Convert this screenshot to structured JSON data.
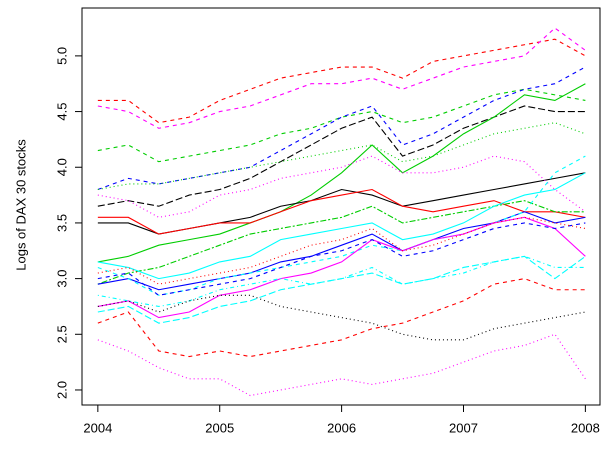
{
  "chart_data": {
    "type": "line",
    "y_label": "Logs of DAX 30 stocks",
    "x": [
      2004,
      2004.25,
      2004.5,
      2004.75,
      2005,
      2005.25,
      2005.5,
      2005.75,
      2006,
      2006.25,
      2006.5,
      2006.75,
      2007,
      2007.25,
      2007.5,
      2007.75,
      2008
    ],
    "xlim": [
      2003.87,
      2008.12
    ],
    "xticks": [
      2004,
      2005,
      2006,
      2007,
      2008
    ],
    "ylim": [
      1.865,
      5.43
    ],
    "yticks": [
      {
        "value": 2,
        "label": "2.0"
      },
      2.5,
      {
        "value": 3,
        "label": "3.0"
      },
      3.5,
      {
        "value": 4,
        "label": "4.0"
      },
      4.5,
      {
        "value": 5,
        "label": "5.0"
      }
    ],
    "series": [
      {
        "color": "#ff0000",
        "linestyle": "dashed",
        "values": [
          4.6,
          4.6,
          4.4,
          4.45,
          4.6,
          4.7,
          4.8,
          4.85,
          4.9,
          4.9,
          4.8,
          4.95,
          5.0,
          5.05,
          5.1,
          5.15,
          5.0
        ]
      },
      {
        "color": "#ff00ff",
        "linestyle": "dashed",
        "values": [
          4.55,
          4.5,
          4.35,
          4.4,
          4.5,
          4.55,
          4.65,
          4.75,
          4.75,
          4.8,
          4.7,
          4.8,
          4.9,
          4.95,
          5.0,
          5.25,
          5.05
        ]
      },
      {
        "color": "#00cd00",
        "linestyle": "dashed",
        "values": [
          4.15,
          4.2,
          4.05,
          4.1,
          4.15,
          4.2,
          4.3,
          4.35,
          4.45,
          4.5,
          4.4,
          4.45,
          4.55,
          4.65,
          4.7,
          4.65,
          4.6
        ]
      },
      {
        "color": "#0000ff",
        "linestyle": "dashed",
        "values": [
          3.8,
          3.9,
          3.85,
          3.9,
          3.95,
          4.0,
          4.15,
          4.3,
          4.45,
          4.55,
          4.2,
          4.3,
          4.45,
          4.6,
          4.7,
          4.75,
          4.9
        ]
      },
      {
        "color": "#000000",
        "linestyle": "longdash",
        "values": [
          3.65,
          3.7,
          3.65,
          3.75,
          3.8,
          3.9,
          4.05,
          4.2,
          4.35,
          4.45,
          4.1,
          4.2,
          4.35,
          4.45,
          4.55,
          4.5,
          4.5
        ]
      },
      {
        "color": "#00cd00",
        "linestyle": "solid",
        "values": [
          3.15,
          3.2,
          3.3,
          3.35,
          3.4,
          3.5,
          3.6,
          3.75,
          3.95,
          4.2,
          3.95,
          4.1,
          4.3,
          4.45,
          4.65,
          4.6,
          4.75
        ]
      },
      {
        "color": "#000000",
        "linestyle": "solid",
        "values": [
          3.5,
          3.5,
          3.4,
          3.45,
          3.5,
          3.55,
          3.65,
          3.7,
          3.8,
          3.75,
          3.65,
          3.7,
          3.75,
          3.8,
          3.85,
          3.9,
          3.95
        ]
      },
      {
        "color": "#ff0000",
        "linestyle": "solid",
        "values": [
          3.55,
          3.55,
          3.4,
          3.45,
          3.5,
          3.5,
          3.6,
          3.7,
          3.75,
          3.8,
          3.65,
          3.6,
          3.65,
          3.7,
          3.6,
          3.6,
          3.55
        ]
      },
      {
        "color": "#ff00ff",
        "linestyle": "dotted",
        "values": [
          3.75,
          3.7,
          3.55,
          3.6,
          3.75,
          3.8,
          3.9,
          3.95,
          4.0,
          4.1,
          3.95,
          3.95,
          4.0,
          4.1,
          4.05,
          3.8,
          3.6
        ]
      },
      {
        "color": "#00cd00",
        "linestyle": "twodash",
        "values": [
          2.95,
          3.05,
          3.1,
          3.2,
          3.3,
          3.4,
          3.45,
          3.5,
          3.55,
          3.65,
          3.5,
          3.55,
          3.6,
          3.65,
          3.7,
          3.6,
          3.6
        ]
      },
      {
        "color": "#0000ff",
        "linestyle": "solid",
        "values": [
          2.95,
          3.0,
          2.9,
          2.95,
          3.0,
          3.05,
          3.15,
          3.2,
          3.3,
          3.4,
          3.25,
          3.35,
          3.45,
          3.5,
          3.6,
          3.5,
          3.55
        ]
      },
      {
        "color": "#00ffff",
        "linestyle": "solid",
        "values": [
          3.15,
          3.1,
          3.0,
          3.05,
          3.15,
          3.2,
          3.35,
          3.4,
          3.45,
          3.5,
          3.35,
          3.4,
          3.5,
          3.65,
          3.75,
          3.8,
          3.95
        ]
      },
      {
        "color": "#00ffff",
        "linestyle": "dashed",
        "values": [
          3.1,
          3.0,
          2.85,
          2.9,
          3.0,
          3.05,
          3.1,
          3.15,
          3.2,
          3.3,
          3.25,
          3.35,
          3.4,
          3.5,
          3.6,
          3.95,
          4.1
        ]
      },
      {
        "color": "#ff00ff",
        "linestyle": "solid",
        "values": [
          2.75,
          2.8,
          2.65,
          2.7,
          2.85,
          2.9,
          3.0,
          3.05,
          3.15,
          3.35,
          3.25,
          3.35,
          3.4,
          3.5,
          3.55,
          3.45,
          3.2
        ]
      },
      {
        "color": "#00ffff",
        "linestyle": "dotdash",
        "values": [
          2.85,
          2.8,
          2.75,
          2.8,
          2.9,
          2.95,
          3.0,
          2.95,
          3.0,
          3.1,
          2.95,
          3.0,
          3.05,
          3.15,
          3.2,
          3.1,
          3.1
        ]
      },
      {
        "color": "#ff0000",
        "linestyle": "dashed",
        "values": [
          2.6,
          2.7,
          2.35,
          2.3,
          2.35,
          2.3,
          2.35,
          2.4,
          2.45,
          2.55,
          2.6,
          2.7,
          2.8,
          2.95,
          3.0,
          2.9,
          2.9
        ]
      },
      {
        "color": "#000000",
        "linestyle": "dotted",
        "values": [
          2.75,
          2.8,
          2.7,
          2.8,
          2.85,
          2.85,
          2.75,
          2.7,
          2.65,
          2.6,
          2.5,
          2.45,
          2.45,
          2.55,
          2.6,
          2.65,
          2.7
        ]
      },
      {
        "color": "#ff00ff",
        "linestyle": "dotted",
        "values": [
          2.45,
          2.35,
          2.2,
          2.1,
          2.1,
          1.95,
          2.0,
          2.05,
          2.1,
          2.05,
          2.1,
          2.15,
          2.25,
          2.35,
          2.4,
          2.5,
          2.1
        ]
      },
      {
        "color": "#0000ff",
        "linestyle": "dashed",
        "values": [
          3.0,
          3.05,
          2.85,
          2.9,
          2.95,
          3.0,
          3.1,
          3.2,
          3.25,
          3.35,
          3.2,
          3.25,
          3.35,
          3.45,
          3.5,
          3.45,
          3.5
        ]
      },
      {
        "color": "#ff0000",
        "linestyle": "dotted",
        "values": [
          3.05,
          3.1,
          2.95,
          3.0,
          3.05,
          3.1,
          3.2,
          3.3,
          3.35,
          3.45,
          3.25,
          3.3,
          3.4,
          3.5,
          3.55,
          3.5,
          3.45
        ]
      },
      {
        "color": "#00cd00",
        "linestyle": "dotted",
        "values": [
          3.8,
          3.85,
          3.85,
          3.9,
          3.95,
          4.0,
          4.05,
          4.1,
          4.15,
          4.2,
          4.05,
          4.1,
          4.2,
          4.3,
          4.35,
          4.4,
          4.3
        ]
      },
      {
        "color": "#00ffff",
        "linestyle": "longdash",
        "values": [
          2.7,
          2.75,
          2.6,
          2.65,
          2.75,
          2.8,
          2.9,
          2.95,
          3.0,
          3.05,
          2.95,
          3.0,
          3.1,
          3.15,
          3.2,
          3.0,
          3.2
        ]
      }
    ]
  }
}
